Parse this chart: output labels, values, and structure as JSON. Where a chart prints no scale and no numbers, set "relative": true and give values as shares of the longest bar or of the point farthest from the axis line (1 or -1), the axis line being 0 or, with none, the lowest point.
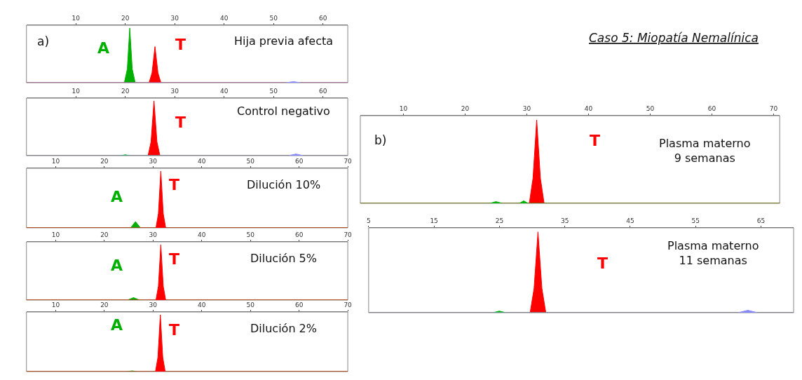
{
  "chart_data": [
    {
      "type": "area",
      "relative": true,
      "xlim": [
        0,
        65
      ],
      "xticks": [
        10,
        20,
        30,
        40,
        50,
        60
      ],
      "grid": false,
      "marker": "none",
      "annotations": [
        "a)",
        "Hija previa afecta",
        "A",
        "T"
      ],
      "series": [
        {
          "color": "#00b000",
          "x": [
            0,
            19.8,
            20.4,
            20.9,
            21.4,
            22,
            65
          ],
          "values": [
            0,
            0,
            0.25,
            1,
            0.25,
            0,
            0
          ]
        },
        {
          "color": "#ff0000",
          "x": [
            0,
            24.8,
            25.4,
            26,
            26.6,
            27.2,
            65
          ],
          "values": [
            0,
            0,
            0.18,
            0.66,
            0.18,
            0,
            0
          ]
        },
        {
          "color": "#8888ff",
          "x": [
            0,
            52.5,
            54,
            55.5,
            65
          ],
          "values": [
            0,
            0,
            0.02,
            0,
            0
          ]
        }
      ]
    },
    {
      "type": "area",
      "relative": true,
      "xlim": [
        0,
        65
      ],
      "xticks": [
        10,
        20,
        30,
        40,
        50,
        60
      ],
      "grid": false,
      "marker": "none",
      "annotations": [
        "Control negativo",
        "T"
      ],
      "series": [
        {
          "color": "#ff0000",
          "x": [
            0,
            24.6,
            25.2,
            25.8,
            26.4,
            27,
            65
          ],
          "values": [
            0,
            0,
            0.25,
            1,
            0.25,
            0,
            0
          ]
        },
        {
          "color": "#00b000",
          "x": [
            0,
            19,
            20,
            21,
            65
          ],
          "values": [
            0,
            0,
            0.015,
            0,
            0
          ]
        },
        {
          "color": "#8888ff",
          "x": [
            0,
            53,
            54.5,
            56,
            65
          ],
          "values": [
            0,
            0,
            0.03,
            0,
            0
          ]
        }
      ]
    },
    {
      "type": "area",
      "relative": true,
      "xlim": [
        4,
        70
      ],
      "xticks": [
        10,
        20,
        30,
        40,
        50,
        60,
        70
      ],
      "grid": false,
      "marker": "none",
      "annotations": [
        "Dilución 10%",
        "A",
        "T"
      ],
      "series": [
        {
          "color": "#00b000",
          "x": [
            4,
            25.4,
            26.4,
            27.4,
            70
          ],
          "values": [
            0,
            0,
            0.11,
            0,
            0
          ]
        },
        {
          "color": "#ff0000",
          "x": [
            4,
            30.6,
            31.1,
            31.6,
            32.1,
            32.6,
            70
          ],
          "values": [
            0,
            0,
            0.25,
            1,
            0.25,
            0,
            0
          ]
        }
      ]
    },
    {
      "type": "area",
      "relative": true,
      "xlim": [
        4,
        70
      ],
      "xticks": [
        10,
        20,
        30,
        40,
        50,
        60,
        70
      ],
      "grid": false,
      "marker": "none",
      "annotations": [
        "Dilución 5%",
        "A",
        "T"
      ],
      "series": [
        {
          "color": "#00b000",
          "x": [
            4,
            24.8,
            26,
            27.2,
            70
          ],
          "values": [
            0,
            0,
            0.045,
            0,
            0
          ]
        },
        {
          "color": "#ff0000",
          "x": [
            4,
            30.6,
            31.1,
            31.6,
            32.1,
            32.6,
            70
          ],
          "values": [
            0,
            0,
            0.25,
            1,
            0.25,
            0,
            0
          ]
        }
      ]
    },
    {
      "type": "area",
      "relative": true,
      "xlim": [
        4,
        70
      ],
      "xticks": [
        10,
        20,
        30,
        40,
        50,
        60,
        70
      ],
      "grid": false,
      "marker": "none",
      "annotations": [
        "Dilución 2%",
        "A",
        "T"
      ],
      "series": [
        {
          "color": "#00b000",
          "x": [
            4,
            24.7,
            25.7,
            26.7,
            70
          ],
          "values": [
            0,
            0,
            0.012,
            0,
            0
          ]
        },
        {
          "color": "#ff0000",
          "x": [
            4,
            30.5,
            31,
            31.5,
            32,
            32.5,
            70
          ],
          "values": [
            0,
            0,
            0.25,
            1,
            0.25,
            0,
            0
          ]
        }
      ]
    },
    {
      "type": "area",
      "relative": true,
      "title": "Caso 5: Miopatía Nemalínica",
      "xlim": [
        3,
        71
      ],
      "xticks": [
        10,
        20,
        30,
        40,
        50,
        60,
        70
      ],
      "grid": false,
      "marker": "none",
      "annotations": [
        "b)",
        "Plasma materno\n9 semanas",
        "T"
      ],
      "series": [
        {
          "color": "#ff0000",
          "x": [
            3,
            30.4,
            31,
            31.6,
            32.2,
            32.8,
            71
          ],
          "values": [
            0,
            0,
            0.3,
            1,
            0.3,
            0,
            0
          ]
        },
        {
          "color": "#00b000",
          "x": [
            3,
            24,
            25,
            26,
            28.8,
            29.5,
            30.2,
            71
          ],
          "values": [
            0,
            0,
            0.02,
            0,
            0,
            0.03,
            0,
            0
          ]
        }
      ]
    },
    {
      "type": "area",
      "relative": true,
      "xlim": [
        5,
        70
      ],
      "xticks": [
        5,
        15,
        25,
        35,
        45,
        55,
        65
      ],
      "grid": false,
      "marker": "none",
      "annotations": [
        "Plasma materno\n11 semanas",
        "T"
      ],
      "series": [
        {
          "color": "#ff0000",
          "x": [
            5,
            29.7,
            30.3,
            30.9,
            31.5,
            32.1,
            70
          ],
          "values": [
            0,
            0,
            0.3,
            1,
            0.3,
            0,
            0
          ]
        },
        {
          "color": "#00b000",
          "x": [
            5,
            24,
            25,
            26,
            70
          ],
          "values": [
            0,
            0,
            0.02,
            0,
            0
          ]
        },
        {
          "color": "#8888ff",
          "x": [
            5,
            61.5,
            63,
            64.5,
            70
          ],
          "values": [
            0,
            0,
            0.03,
            0,
            0
          ]
        }
      ]
    }
  ]
}
